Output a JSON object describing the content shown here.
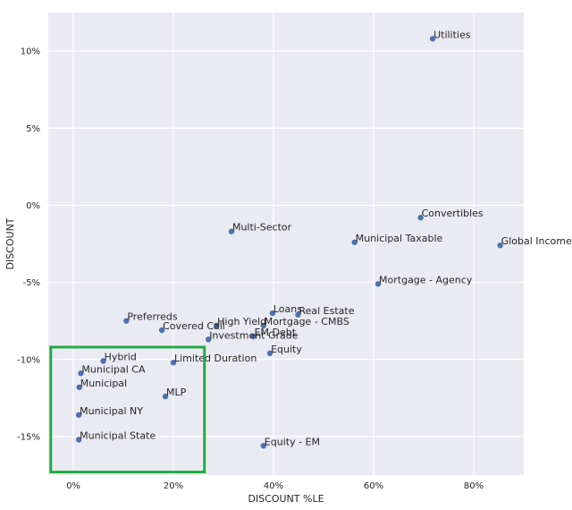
{
  "chart_data": {
    "type": "scatter",
    "xlabel": "DISCOUNT %LE",
    "ylabel": "DISCOUNT",
    "xlim": [
      -0.05,
      0.9
    ],
    "ylim": [
      -0.175,
      0.125
    ],
    "x_ticks": [
      0,
      0.2,
      0.4,
      0.6,
      0.8
    ],
    "x_tick_labels": [
      "0%",
      "20%",
      "40%",
      "60%",
      "80%"
    ],
    "y_ticks": [
      0.1,
      0.05,
      0.0,
      -0.05,
      -0.1,
      -0.15
    ],
    "y_tick_labels": [
      "10%",
      "5%",
      "0%",
      "-5%",
      "-10%",
      "-15%"
    ],
    "grid": true,
    "point_color": "#4c72b0",
    "background_color": "#eaeaf2",
    "highlight_color": "#22aa44",
    "highlight_box": {
      "x": [
        -0.045,
        0.262
      ],
      "y": [
        -0.173,
        -0.092
      ]
    },
    "points": [
      {
        "label": "Utilities",
        "x": 0.718,
        "y": 0.108
      },
      {
        "label": "Convertibles",
        "x": 0.694,
        "y": -0.008
      },
      {
        "label": "Municipal Taxable",
        "x": 0.562,
        "y": -0.024
      },
      {
        "label": "Global Income",
        "x": 0.853,
        "y": -0.026
      },
      {
        "label": "Multi-Sector",
        "x": 0.316,
        "y": -0.017
      },
      {
        "label": "Mortgage - Agency",
        "x": 0.609,
        "y": -0.051
      },
      {
        "label": "Loans",
        "x": 0.398,
        "y": -0.07
      },
      {
        "label": "Real Estate",
        "x": 0.449,
        "y": -0.071
      },
      {
        "label": "Preferreds",
        "x": 0.106,
        "y": -0.075
      },
      {
        "label": "High Yield",
        "x": 0.286,
        "y": -0.078
      },
      {
        "label": "Mortgage - CMBS",
        "x": 0.38,
        "y": -0.078
      },
      {
        "label": "Covered Call",
        "x": 0.177,
        "y": -0.081
      },
      {
        "label": "Investment Grade",
        "x": 0.27,
        "y": -0.087
      },
      {
        "label": "EM Debt",
        "x": 0.36,
        "y": -0.085
      },
      {
        "label": "Equity",
        "x": 0.393,
        "y": -0.096
      },
      {
        "label": "Hybrid",
        "x": 0.06,
        "y": -0.101
      },
      {
        "label": "Limited Duration",
        "x": 0.2,
        "y": -0.102
      },
      {
        "label": "Municipal CA",
        "x": 0.015,
        "y": -0.109
      },
      {
        "label": "Municipal",
        "x": 0.012,
        "y": -0.118
      },
      {
        "label": "MLP",
        "x": 0.184,
        "y": -0.124
      },
      {
        "label": "Municipal NY",
        "x": 0.011,
        "y": -0.136
      },
      {
        "label": "Municipal State",
        "x": 0.011,
        "y": -0.152
      },
      {
        "label": "Equity - EM",
        "x": 0.38,
        "y": -0.156
      }
    ]
  }
}
